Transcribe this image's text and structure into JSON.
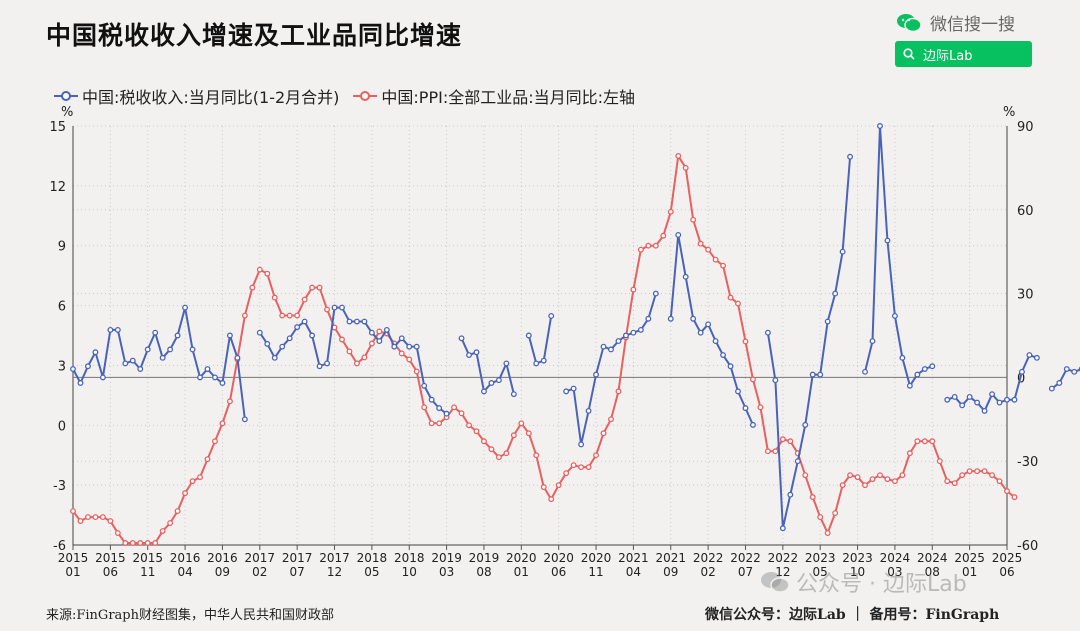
{
  "title": "中国税收收入增速及工业品同比增速",
  "wechat_search": {
    "label": "微信搜一搜",
    "button_text": "边际Lab"
  },
  "legend": [
    {
      "label": "中国:税收收入:当月同比(1-2月合并)",
      "color": "#4a63b8"
    },
    {
      "label": "中国:PPI:全部工业品:当月同比:左轴",
      "color": "#e8605f"
    }
  ],
  "footer": {
    "source": "来源:FinGraph财经图集，中华人民共和国财政部",
    "right": "微信公众号：边际Lab ｜ 备用号：FinGraph"
  },
  "watermark": "公众号 · 边际Lab",
  "chart_data": {
    "type": "line",
    "x_ticks": [
      [
        "2015",
        "01"
      ],
      [
        "2015",
        "06"
      ],
      [
        "2015",
        "11"
      ],
      [
        "2016",
        "04"
      ],
      [
        "2016",
        "09"
      ],
      [
        "2017",
        "02"
      ],
      [
        "2017",
        "07"
      ],
      [
        "2017",
        "12"
      ],
      [
        "2018",
        "05"
      ],
      [
        "2018",
        "10"
      ],
      [
        "2019",
        "03"
      ],
      [
        "2019",
        "08"
      ],
      [
        "2020",
        "01"
      ],
      [
        "2020",
        "06"
      ],
      [
        "2020",
        "11"
      ],
      [
        "2021",
        "04"
      ],
      [
        "2021",
        "09"
      ],
      [
        "2022",
        "02"
      ],
      [
        "2022",
        "07"
      ],
      [
        "2022",
        "12"
      ],
      [
        "2023",
        "05"
      ],
      [
        "2023",
        "10"
      ],
      [
        "2024",
        "03"
      ],
      [
        "2024",
        "08"
      ],
      [
        "2025",
        "01"
      ],
      [
        "2025",
        "06"
      ]
    ],
    "left_axis": {
      "unit": "%",
      "min": -6,
      "max": 15,
      "ticks": [
        -6,
        -3,
        0,
        3,
        6,
        9,
        12,
        15
      ]
    },
    "right_axis": {
      "unit": "%",
      "min": -60,
      "max": 90,
      "ticks": [
        -60,
        -30,
        0,
        30,
        60,
        90
      ]
    },
    "grid": "dotted",
    "series": [
      {
        "name": "中国:PPI:全部工业品:当月同比:左轴",
        "color": "#e8605f",
        "axis": "left",
        "start": "2015-01",
        "values": [
          -4.3,
          -4.8,
          -4.6,
          -4.6,
          -4.6,
          -4.8,
          -5.4,
          -5.9,
          -5.9,
          -5.9,
          -5.9,
          -5.9,
          -5.3,
          -4.9,
          -4.3,
          -3.4,
          -2.8,
          -2.6,
          -1.7,
          -0.8,
          0.1,
          1.2,
          3.3,
          5.5,
          6.9,
          7.8,
          7.6,
          6.4,
          5.5,
          5.5,
          5.5,
          6.3,
          6.9,
          6.9,
          5.8,
          4.9,
          4.3,
          3.7,
          3.1,
          3.4,
          4.1,
          4.7,
          4.6,
          4.1,
          3.6,
          3.3,
          2.7,
          0.9,
          0.1,
          0.1,
          0.4,
          0.9,
          0.6,
          0.0,
          -0.3,
          -0.8,
          -1.2,
          -1.6,
          -1.4,
          -0.5,
          0.1,
          -0.4,
          -1.5,
          -3.1,
          -3.7,
          -3.0,
          -2.4,
          -2.0,
          -2.1,
          -2.1,
          -1.5,
          -0.4,
          0.3,
          1.7,
          4.4,
          6.8,
          8.8,
          9.0,
          9.0,
          9.5,
          10.7,
          13.5,
          12.9,
          10.3,
          9.1,
          8.8,
          8.3,
          8.0,
          6.4,
          6.1,
          4.2,
          2.3,
          0.9,
          -1.3,
          -1.3,
          -0.7,
          -0.8,
          -1.4,
          -2.5,
          -3.6,
          -4.6,
          -5.4,
          -4.4,
          -3.0,
          -2.5,
          -2.6,
          -3.0,
          -2.7,
          -2.5,
          -2.7,
          -2.8,
          -2.5,
          -1.4,
          -0.8,
          -0.8,
          -0.8,
          -1.8,
          -2.8,
          -2.9,
          -2.5,
          -2.3,
          -2.3,
          -2.3,
          -2.5,
          -2.8,
          -3.3,
          -3.6
        ]
      },
      {
        "name": "中国:税收收入:当月同比(1-2月合并)",
        "color": "#4a63b8",
        "axis": "right",
        "start": "2015-01",
        "values": [
          3,
          -2,
          4,
          9,
          0,
          17,
          17,
          5,
          6,
          3,
          10,
          16,
          7,
          10,
          15,
          25,
          10,
          0,
          3,
          0,
          -2,
          15,
          7,
          -15,
          null,
          16,
          12,
          7,
          11,
          14,
          18,
          20,
          15,
          4,
          5,
          25,
          25,
          20,
          20,
          20,
          16,
          13,
          17,
          11,
          14,
          11,
          11,
          -3,
          -8,
          -11,
          -13,
          null,
          14,
          8,
          9,
          -5,
          -2,
          -1,
          5,
          -6,
          null,
          15,
          5,
          6,
          22,
          null,
          -5,
          -4,
          -24,
          -12,
          1,
          11,
          10,
          13,
          15,
          16,
          17,
          21,
          30,
          null,
          21,
          51,
          36,
          21,
          16,
          19,
          13,
          8,
          4,
          -5,
          -11,
          -17,
          null,
          16,
          -1,
          -54,
          -42,
          -30,
          -17,
          1,
          1,
          20,
          30,
          45,
          79,
          null,
          2,
          13,
          90,
          49,
          22,
          7,
          -3,
          1,
          3,
          4,
          null,
          -8,
          -7,
          -10,
          -7,
          -9,
          -12,
          -6,
          -9,
          -8,
          -8,
          2,
          8,
          7,
          null,
          -4,
          -2,
          3,
          2,
          3,
          2
        ]
      }
    ]
  }
}
